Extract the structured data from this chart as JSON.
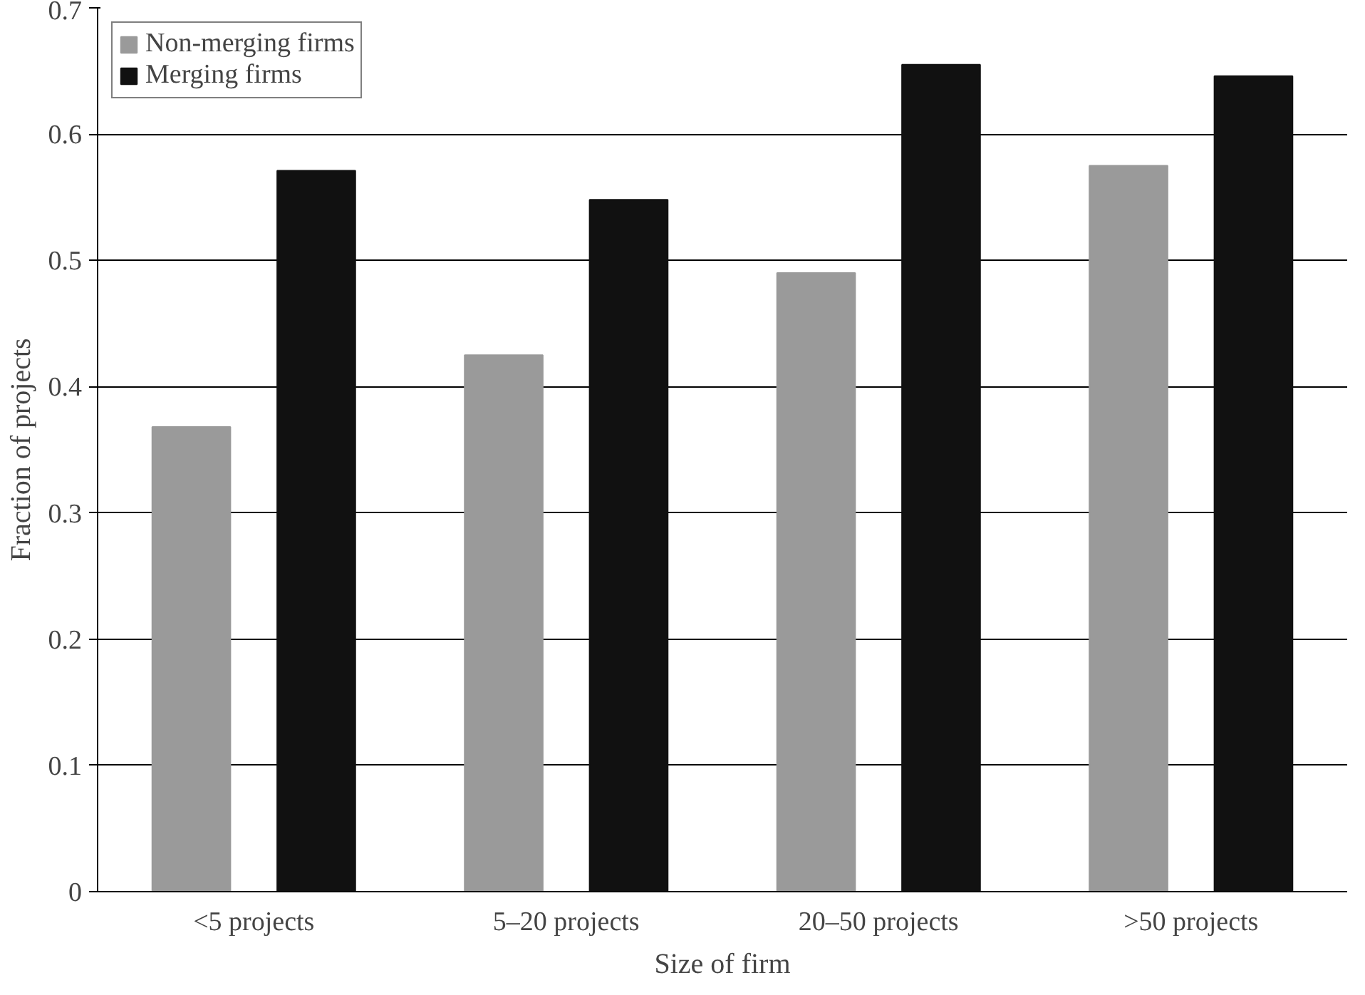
{
  "chart_data": {
    "type": "bar",
    "xlabel": "Size of firm",
    "ylabel": "Fraction of projects",
    "categories": [
      "<5 projects",
      "5–20 projects",
      "20–50 projects",
      ">50 projects"
    ],
    "series": [
      {
        "name": "Non-merging firms",
        "color": "#9a9a9a",
        "values": [
          0.368,
          0.425,
          0.49,
          0.575
        ]
      },
      {
        "name": "Merging firms",
        "color": "#111111",
        "values": [
          0.571,
          0.548,
          0.655,
          0.646
        ]
      }
    ],
    "ylim": [
      0,
      0.7
    ],
    "yticks": [
      0,
      0.1,
      0.2,
      0.3,
      0.4,
      0.5,
      0.6,
      0.7
    ],
    "grid": "y",
    "legend": "top left"
  }
}
